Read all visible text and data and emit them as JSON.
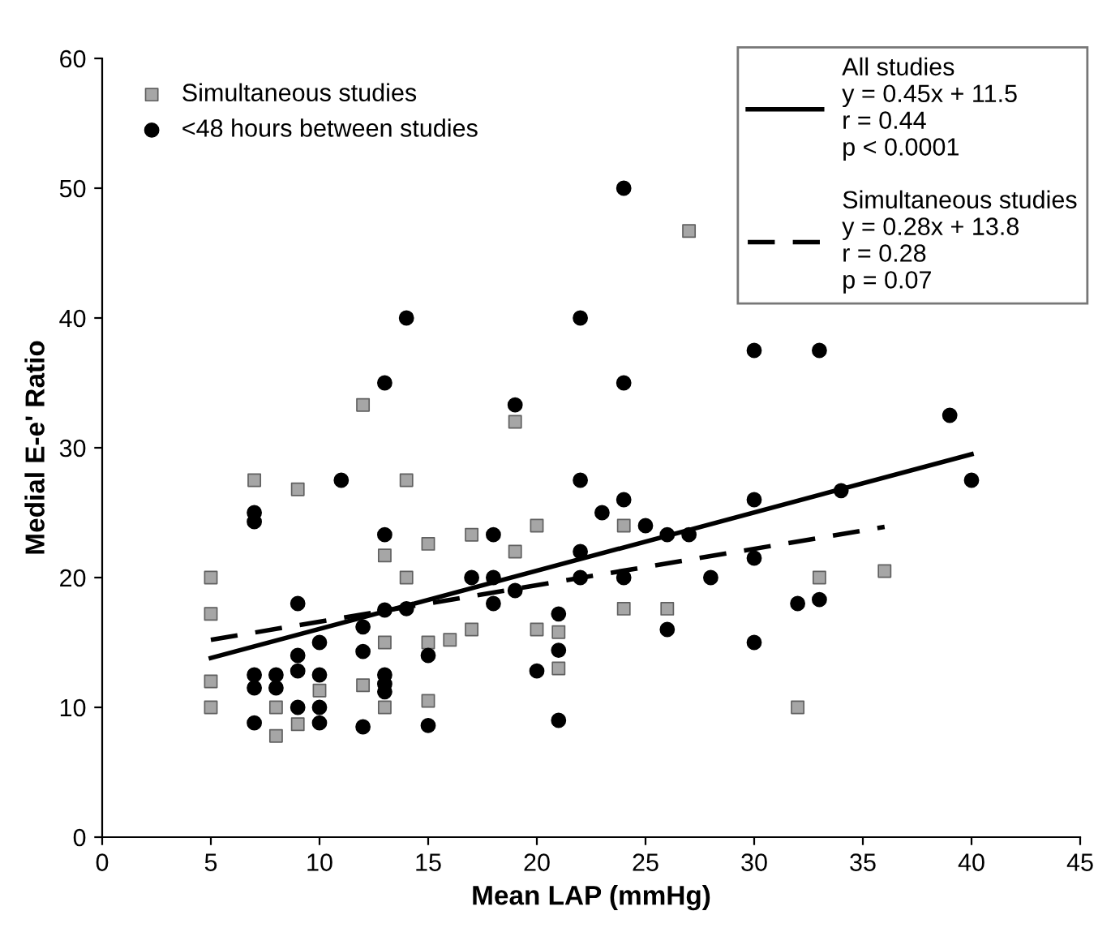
{
  "chart_data": {
    "type": "scatter",
    "xlabel": "Mean LAP (mmHg)",
    "ylabel": "Medial E-e' Ratio",
    "xlim": [
      0,
      45
    ],
    "xticks": [
      0,
      5,
      10,
      15,
      20,
      25,
      30,
      35,
      40,
      45
    ],
    "ylim": [
      0,
      60
    ],
    "yticks": [
      0,
      10,
      20,
      30,
      40,
      50,
      60
    ],
    "grid": false,
    "legend": "top left",
    "series": [
      {
        "name": "Simultaneous studies",
        "type": "scatter",
        "marker": "square",
        "color": "#a6a6a6",
        "x": [
          5,
          5,
          5,
          5,
          7,
          8,
          8,
          9,
          9,
          10,
          12,
          12,
          13,
          13,
          13,
          14,
          14,
          15,
          15,
          15,
          16,
          17,
          17,
          19,
          19,
          20,
          20,
          21,
          21,
          24,
          24,
          26,
          27,
          32,
          33,
          36
        ],
        "values": [
          20,
          17.2,
          12,
          10,
          27.5,
          7.8,
          10,
          26.8,
          8.7,
          11.3,
          33.3,
          11.7,
          21.7,
          15,
          10,
          27.5,
          20,
          22.6,
          15,
          10.5,
          15.2,
          23.3,
          16,
          32,
          22,
          24,
          16,
          15.8,
          13,
          24,
          17.6,
          17.6,
          46.7,
          10,
          20,
          20.5
        ]
      },
      {
        "name": "<48 hours between studies",
        "type": "scatter",
        "marker": "circle",
        "color": "#000000",
        "x": [
          7,
          7,
          7,
          7,
          7,
          8,
          8,
          9,
          9,
          9,
          9,
          10,
          10,
          10,
          10,
          11,
          12,
          12,
          12,
          13,
          13,
          13,
          13,
          13,
          13,
          14,
          14,
          15,
          15,
          17,
          18,
          18,
          18,
          19,
          19,
          20,
          21,
          21,
          21,
          22,
          22,
          22,
          22,
          23,
          24,
          24,
          24,
          24,
          25,
          26,
          26,
          27,
          28,
          30,
          30,
          30,
          30,
          32,
          33,
          33,
          34,
          39,
          40
        ],
        "values": [
          25,
          24.3,
          12.5,
          11.5,
          8.8,
          12.5,
          11.5,
          18,
          14,
          12.8,
          10,
          15,
          12.5,
          10,
          8.8,
          27.5,
          16.2,
          14.3,
          8.5,
          35,
          23.3,
          17.5,
          12.5,
          11.8,
          11.2,
          40,
          17.6,
          14,
          8.6,
          20,
          23.3,
          20,
          18,
          33.3,
          19,
          12.8,
          17.2,
          14.4,
          9,
          40,
          27.5,
          22,
          20,
          25,
          50,
          35,
          26,
          20,
          24,
          23.3,
          16,
          23.3,
          20,
          37.5,
          26,
          21.5,
          15,
          18,
          37.5,
          18.3,
          26.7,
          32.5,
          27.5
        ]
      },
      {
        "name": "All studies\ny = 0.45x + 11.5\nr = 0.44\np < 0.0001",
        "type": "line",
        "line_style": "solid",
        "color": "#000000",
        "x": [
          5,
          40
        ],
        "values": [
          13.8,
          29.5
        ]
      },
      {
        "name": "Simultaneous studies\ny = 0.28x + 13.8\nr = 0.28\np = 0.07",
        "type": "line",
        "line_style": "dashed",
        "color": "#000000",
        "x": [
          5,
          36
        ],
        "values": [
          15.2,
          23.9
        ]
      }
    ]
  }
}
